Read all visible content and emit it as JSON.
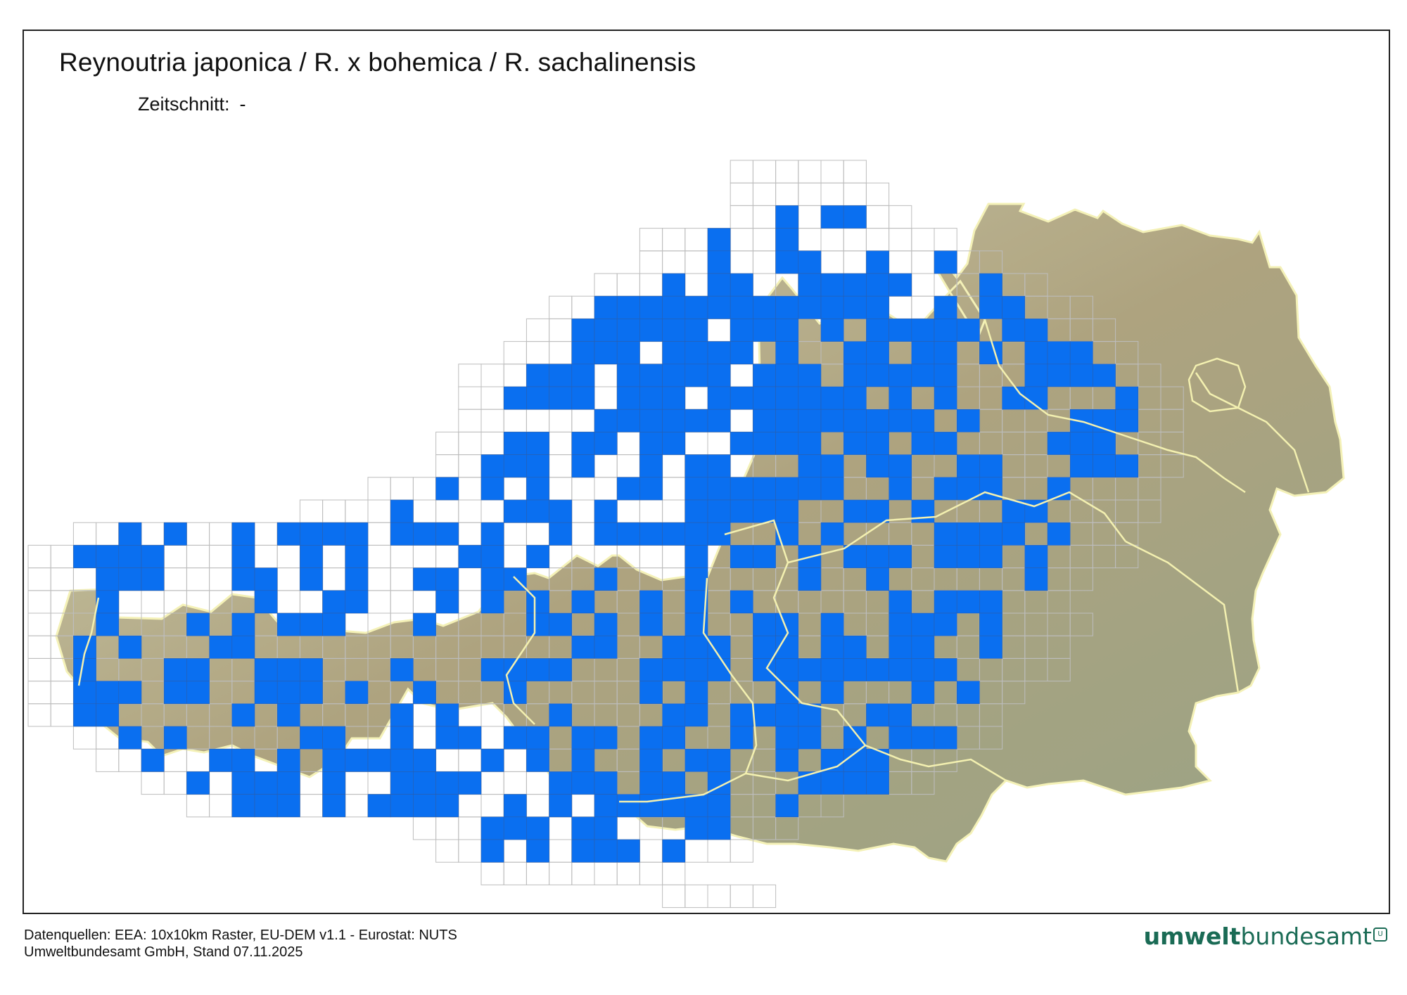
{
  "map": {
    "title": "Reynoutria japonica / R. x bohemica / R. sachalinensis",
    "subtitle_label": "Zeitschnitt:",
    "subtitle_value": "-",
    "colors": {
      "occupied": "#0a6ff0",
      "grid": "#bdbdbd",
      "terrain_light": "#c9c8a6",
      "terrain_mid": "#a69a72",
      "terrain_dark": "#7d8a6a",
      "border": "#f3f0b0"
    }
  },
  "footer": {
    "source_line": "Datenquellen: EEA: 10x10km Raster, EU-DEM v1.1 - Eurostat: NUTS",
    "org_line": "Umweltbundesamt GmbH, Stand 07.11.2025",
    "logo_part1": "umwelt",
    "logo_part2": "bundesamt",
    "logo_part1_color": "#1a6b55",
    "logo_part2_color": "#1a6b55"
  }
}
